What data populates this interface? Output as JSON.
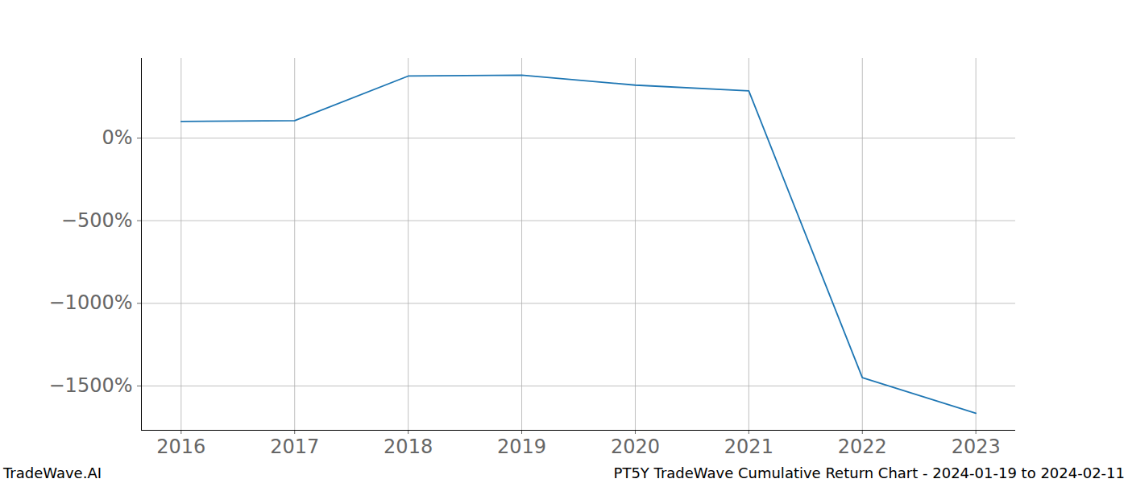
{
  "chart_data": {
    "type": "line",
    "title": "PT5Y TradeWave Cumulative Return Chart - 2024-01-19 to 2024-02-11",
    "annotations": [
      "TradeWave.AI"
    ],
    "x": [
      2016,
      2017,
      2018,
      2019,
      2020,
      2021,
      2022,
      2023
    ],
    "series": [
      {
        "name": "PT5Y",
        "color": "#1f77b4",
        "values": [
          100,
          105,
          375,
          380,
          320,
          285,
          -1450,
          -1665
        ]
      }
    ],
    "xlim": [
      2015.65,
      2023.35
    ],
    "xticks": [
      2016,
      2017,
      2018,
      2019,
      2020,
      2021,
      2022,
      2023
    ],
    "ylim": [
      -1768,
      482
    ],
    "yticks": [
      {
        "value": 0,
        "label": "0%"
      },
      {
        "value": -500,
        "label": "−500%"
      },
      {
        "value": -1000,
        "label": "−1000%"
      },
      {
        "value": -1500,
        "label": "−1500%"
      }
    ],
    "grid": true
  }
}
